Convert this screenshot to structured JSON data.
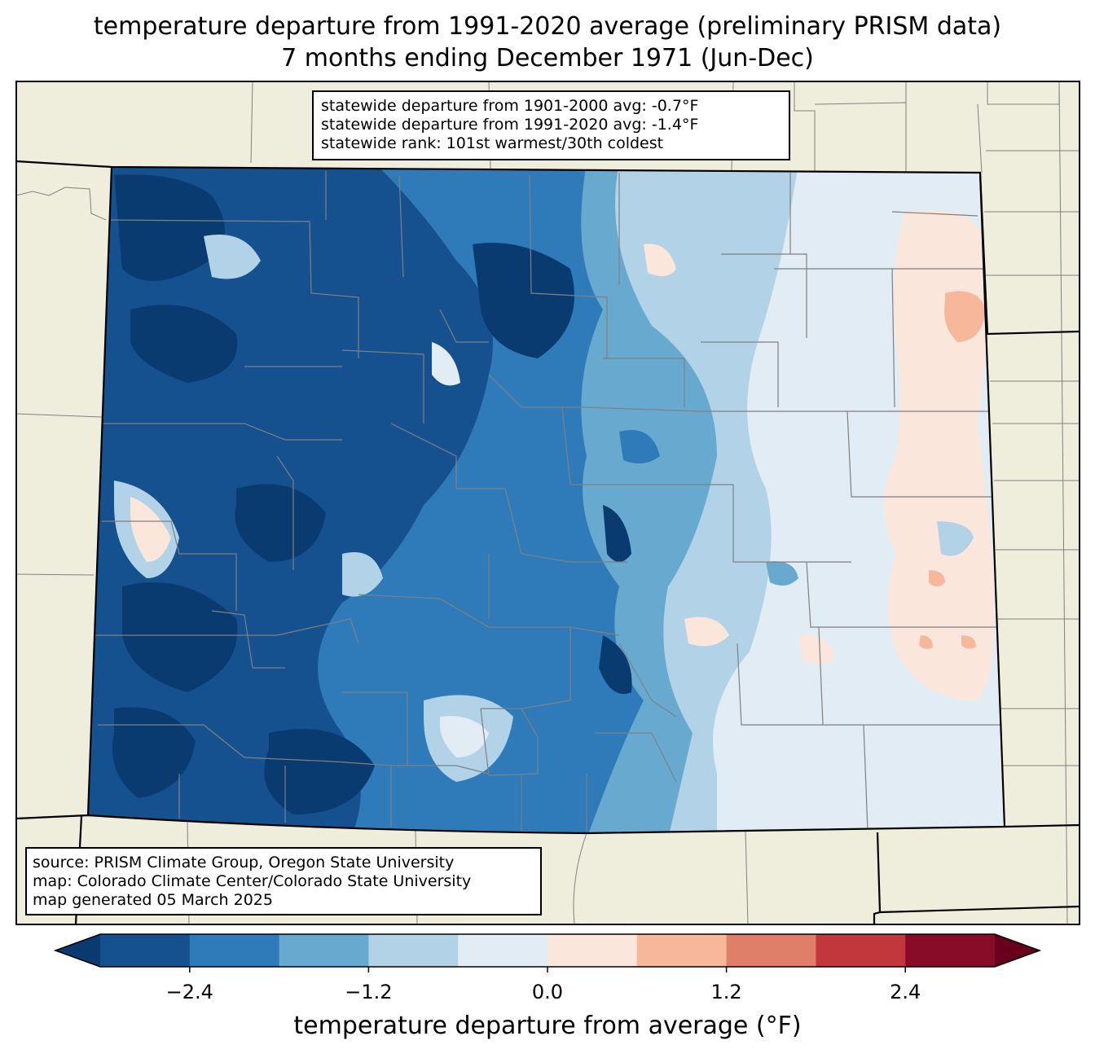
{
  "title": {
    "line1": "temperature departure from 1991-2020 average (preliminary PRISM data)",
    "line2": "7 months ending December 1971 (Jun-Dec)"
  },
  "stats": {
    "line1": "statewide departure from 1901-2000 avg: -0.7°F",
    "line2": "statewide departure from 1991-2020 avg: -1.4°F",
    "line3": "statewide rank: 101st warmest/30th coldest"
  },
  "source": {
    "line1": "source: PRISM Climate Group, Oregon State University",
    "line2": "map: Colorado Climate Center/Colorado State University",
    "line3": "map generated 05 March 2025"
  },
  "colorbar": {
    "label": "temperature departure from average (°F)",
    "ticks": [
      "−2.4",
      "−1.2",
      "0.0",
      "1.2",
      "2.4"
    ],
    "tick_values": [
      -2.4,
      -1.2,
      0.0,
      1.2,
      2.4
    ],
    "levels": [
      -3.0,
      -2.4,
      -1.8,
      -1.2,
      -0.6,
      0.0,
      0.6,
      1.2,
      1.8,
      2.4,
      3.0
    ],
    "colors": [
      "#0a3b70",
      "#15508f",
      "#2f7bb9",
      "#67a9cf",
      "#b2d3e7",
      "#e2ecf4",
      "#fbe6dc",
      "#f7b79b",
      "#e07f69",
      "#c1373c",
      "#870c27",
      "#67001f"
    ]
  },
  "map_colors": {
    "background": "#efeedc",
    "state_border": "#000000",
    "county_line": "#808080"
  }
}
